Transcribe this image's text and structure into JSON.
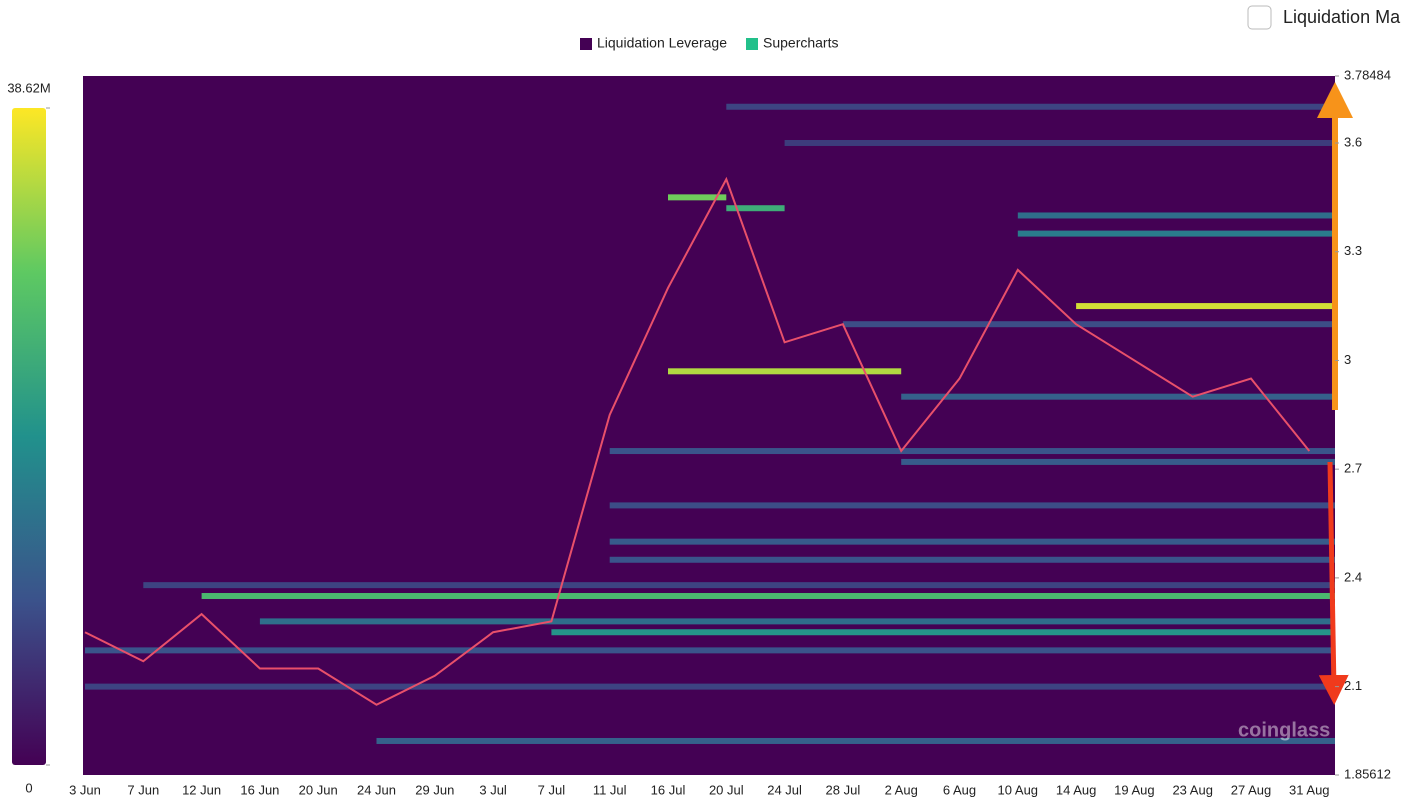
{
  "header": {
    "toggle_label": "Liquidation Ma"
  },
  "chart_data": {
    "type": "heatmap",
    "legend": [
      {
        "name": "Liquidation Leverage",
        "color": "#440154"
      },
      {
        "name": "Supercharts",
        "color": "#22c08a"
      }
    ],
    "watermark": "coinglass",
    "colorbar": {
      "ticks": [
        0,
        {
          "value": 38620000,
          "label": "38.62M"
        }
      ],
      "lim": [
        0,
        38620000
      ]
    },
    "categories": [
      "3 Jun",
      "7 Jun",
      "12 Jun",
      "16 Jun",
      "20 Jun",
      "24 Jun",
      "29 Jun",
      "3 Jul",
      "7 Jul",
      "11 Jul",
      "16 Jul",
      "20 Jul",
      "24 Jul",
      "28 Jul",
      "2 Aug",
      "6 Aug",
      "10 Aug",
      "14 Aug",
      "19 Aug",
      "23 Aug",
      "27 Aug",
      "31 Aug"
    ],
    "ylim": [
      1.85612,
      3.78484
    ],
    "yticks": [
      1.85612,
      2.1,
      2.4,
      2.7,
      3,
      3.3,
      3.6,
      3.78484
    ],
    "price": {
      "color": "#e8506a",
      "values": [
        2.25,
        2.17,
        2.3,
        2.15,
        2.15,
        2.05,
        2.13,
        2.25,
        2.28,
        2.85,
        3.2,
        3.5,
        3.05,
        3.1,
        2.75,
        2.95,
        3.25,
        3.1,
        3.0,
        2.9,
        2.95,
        2.75
      ]
    },
    "levels": [
      {
        "from": "12 Jun",
        "to": "31 Aug",
        "price": 2.35,
        "value": 26000000
      },
      {
        "from": "7 Jun",
        "to": "31 Aug",
        "price": 2.38,
        "value": 8000000
      },
      {
        "from": "16 Jun",
        "to": "31 Aug",
        "price": 2.28,
        "value": 14000000
      },
      {
        "from": "3 Jun",
        "to": "31 Aug",
        "price": 2.2,
        "value": 10000000
      },
      {
        "from": "7 Jul",
        "to": "31 Aug",
        "price": 2.25,
        "value": 20000000
      },
      {
        "from": "3 Jun",
        "to": "31 Aug",
        "price": 2.1,
        "value": 8000000
      },
      {
        "from": "24 Jun",
        "to": "31 Aug",
        "price": 1.95,
        "value": 12000000
      },
      {
        "from": "11 Jul",
        "to": "31 Aug",
        "price": 2.45,
        "value": 10000000
      },
      {
        "from": "11 Jul",
        "to": "31 Aug",
        "price": 2.5,
        "value": 11000000
      },
      {
        "from": "11 Jul",
        "to": "31 Aug",
        "price": 2.6,
        "value": 9000000
      },
      {
        "from": "2 Aug",
        "to": "31 Aug",
        "price": 2.72,
        "value": 11000000
      },
      {
        "from": "11 Jul",
        "to": "31 Aug",
        "price": 2.75,
        "value": 10000000
      },
      {
        "from": "2 Aug",
        "to": "31 Aug",
        "price": 2.9,
        "value": 12000000
      },
      {
        "from": "16 Jul",
        "to": "2 Aug",
        "price": 2.97,
        "value": 34000000
      },
      {
        "from": "28 Jul",
        "to": "31 Aug",
        "price": 3.1,
        "value": 9000000
      },
      {
        "from": "14 Aug",
        "to": "31 Aug",
        "price": 3.15,
        "value": 36000000
      },
      {
        "from": "10 Aug",
        "to": "31 Aug",
        "price": 3.35,
        "value": 16000000
      },
      {
        "from": "10 Aug",
        "to": "31 Aug",
        "price": 3.4,
        "value": 14000000
      },
      {
        "from": "20 Jul",
        "to": "24 Jul",
        "price": 3.42,
        "value": 24000000
      },
      {
        "from": "16 Jul",
        "to": "20 Jul",
        "price": 3.45,
        "value": 30000000
      },
      {
        "from": "24 Jul",
        "to": "31 Aug",
        "price": 3.6,
        "value": 7000000
      },
      {
        "from": "20 Jul",
        "to": "31 Aug",
        "price": 3.7,
        "value": 8000000
      }
    ]
  }
}
